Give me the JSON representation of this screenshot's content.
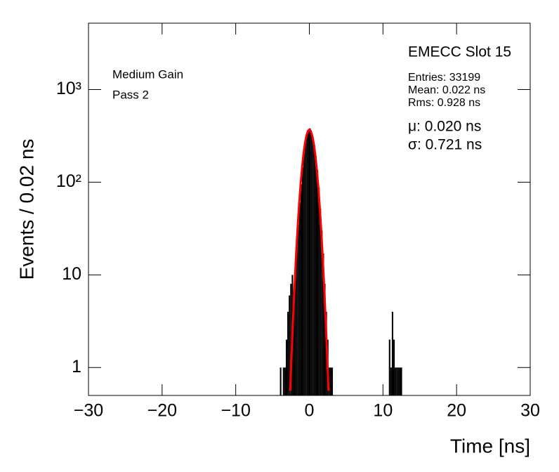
{
  "chart_data": {
    "type": "histogram",
    "xlabel": "Time [ns]",
    "ylabel": "Events / 0.02 ns",
    "log_y": true,
    "xlim": [
      -30,
      30
    ],
    "ylim": [
      0.5,
      5200
    ],
    "xticks": [
      {
        "value": -30,
        "label": "−30"
      },
      {
        "value": -20,
        "label": "−20"
      },
      {
        "value": -10,
        "label": "−10"
      },
      0,
      10,
      20,
      30
    ],
    "yticks": [
      1,
      10,
      {
        "value": 100,
        "label": "10²"
      },
      {
        "value": 1000,
        "label": "10³"
      }
    ],
    "color": "#000000",
    "bins": [
      -4.0,
      -3.8,
      -3.6,
      -3.4,
      -3.2,
      -3.0,
      -2.8,
      -2.6,
      -2.4,
      -2.2,
      -2.0,
      -1.8,
      -1.6,
      -1.4,
      -1.2,
      -1.0,
      -0.8,
      -0.6,
      -0.4,
      -0.2,
      0.0,
      0.2,
      0.4,
      0.6,
      0.8,
      1.0,
      1.2,
      1.4,
      1.6,
      1.8,
      2.0,
      2.2,
      2.4,
      2.6,
      2.8,
      3.0,
      3.2,
      3.4,
      3.6,
      3.8,
      4.0,
      4.2,
      4.4,
      4.6,
      4.8,
      5.0,
      5.2,
      5.4,
      5.6,
      5.8,
      6.0,
      6.2,
      6.4,
      6.6,
      6.8,
      7.0,
      7.2,
      7.4,
      7.6,
      7.8,
      8.0,
      8.2,
      8.4,
      8.6,
      8.8,
      9.0,
      9.2,
      9.4,
      9.6,
      9.8,
      10.0,
      10.2,
      10.4,
      10.6,
      10.8,
      11.0,
      11.2,
      11.4,
      11.6,
      11.8,
      12.0,
      12.2,
      12.4,
      12.6,
      12.8,
      13.0
    ],
    "values": [
      1,
      0,
      1,
      1,
      2,
      4,
      6,
      8,
      10,
      6,
      10,
      20,
      35,
      60,
      95,
      145,
      205,
      270,
      330,
      370,
      380,
      345,
      300,
      250,
      190,
      135,
      88,
      52,
      30,
      17,
      8,
      4,
      2,
      1,
      1,
      1,
      0,
      0,
      0,
      0,
      0,
      0,
      0,
      0,
      0,
      0,
      0,
      0,
      0,
      0,
      0,
      0,
      0,
      0,
      0,
      0,
      0,
      0,
      0,
      0,
      0,
      0,
      0,
      0,
      0,
      0,
      0,
      0,
      0,
      0,
      0,
      0,
      0,
      0,
      2,
      1,
      4,
      2,
      1,
      1,
      1,
      1,
      1,
      0,
      0
    ],
    "fit": {
      "color": "#ff0000",
      "x": [
        -2.6,
        -2.4,
        -2.2,
        -2.0,
        -1.8,
        -1.6,
        -1.4,
        -1.2,
        -1.0,
        -0.8,
        -0.6,
        -0.4,
        -0.2,
        0.0,
        0.2,
        0.4,
        0.6,
        0.8,
        1.0,
        1.2,
        1.4,
        1.6,
        1.8,
        2.0,
        2.2,
        2.4,
        2.6
      ],
      "values": [
        0.56,
        1.45,
        3.52,
        7.9,
        16.4,
        31.6,
        56.2,
        92.6,
        141,
        200,
        262,
        317,
        356,
        370,
        356,
        317,
        262,
        200,
        141,
        92.6,
        56.2,
        31.6,
        16.4,
        7.9,
        3.52,
        1.45,
        0.56
      ]
    },
    "annotations": [
      "Medium Gain",
      "Pass 2"
    ],
    "stats": {
      "title": "EMECC Slot 15",
      "lines": [
        "Entries: 33199",
        "Mean: 0.022 ns",
        "Rms: 0.928 ns"
      ],
      "fit_lines": [
        "μ: 0.020 ns",
        "σ: 0.721 ns"
      ]
    }
  }
}
